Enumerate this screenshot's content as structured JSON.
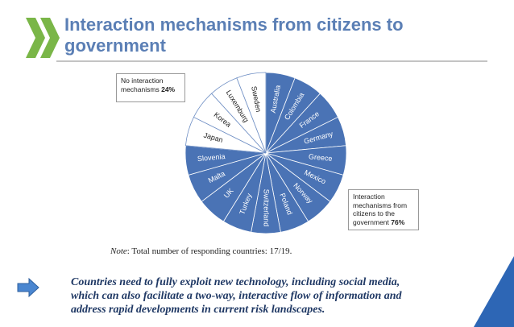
{
  "slide": {
    "title": "Interaction mechanisms from citizens to government",
    "note_label": "Note",
    "note": ": Total number of responding countries: 17/19.",
    "message_lines": [
      "Countries need to fully exploit new technology, including social media,",
      "which can also facilitate a two-way, interactive flow of information and",
      "address rapid developments in current risk landscapes."
    ]
  },
  "chart_data": {
    "type": "pie",
    "categories": [
      "Australia",
      "Colombia",
      "France",
      "Germany",
      "Greece",
      "Mexico",
      "Norway",
      "Poland",
      "Switzerland",
      "Turkey",
      "UK",
      "Malta",
      "Slovenia",
      "Japan",
      "Korea",
      "Luxemburg",
      "Sweden"
    ],
    "values": [
      1,
      1,
      1,
      1,
      1,
      1,
      1,
      1,
      1,
      1,
      1,
      1,
      1,
      1,
      1,
      1,
      1
    ],
    "colors": [
      "#4a73b5",
      "#4a73b5",
      "#4a73b5",
      "#4a73b5",
      "#4a73b5",
      "#4a73b5",
      "#4a73b5",
      "#4a73b5",
      "#4a73b5",
      "#4a73b5",
      "#4a73b5",
      "#4a73b5",
      "#4a73b5",
      "#ffffff",
      "#ffffff",
      "#ffffff",
      "#ffffff"
    ],
    "callouts": [
      {
        "label": "No interaction mechanisms",
        "value": 24,
        "value_label": "24%"
      },
      {
        "label": "Interaction mechanisms from citizens to the government",
        "value": 76,
        "value_label": "76%"
      }
    ]
  }
}
